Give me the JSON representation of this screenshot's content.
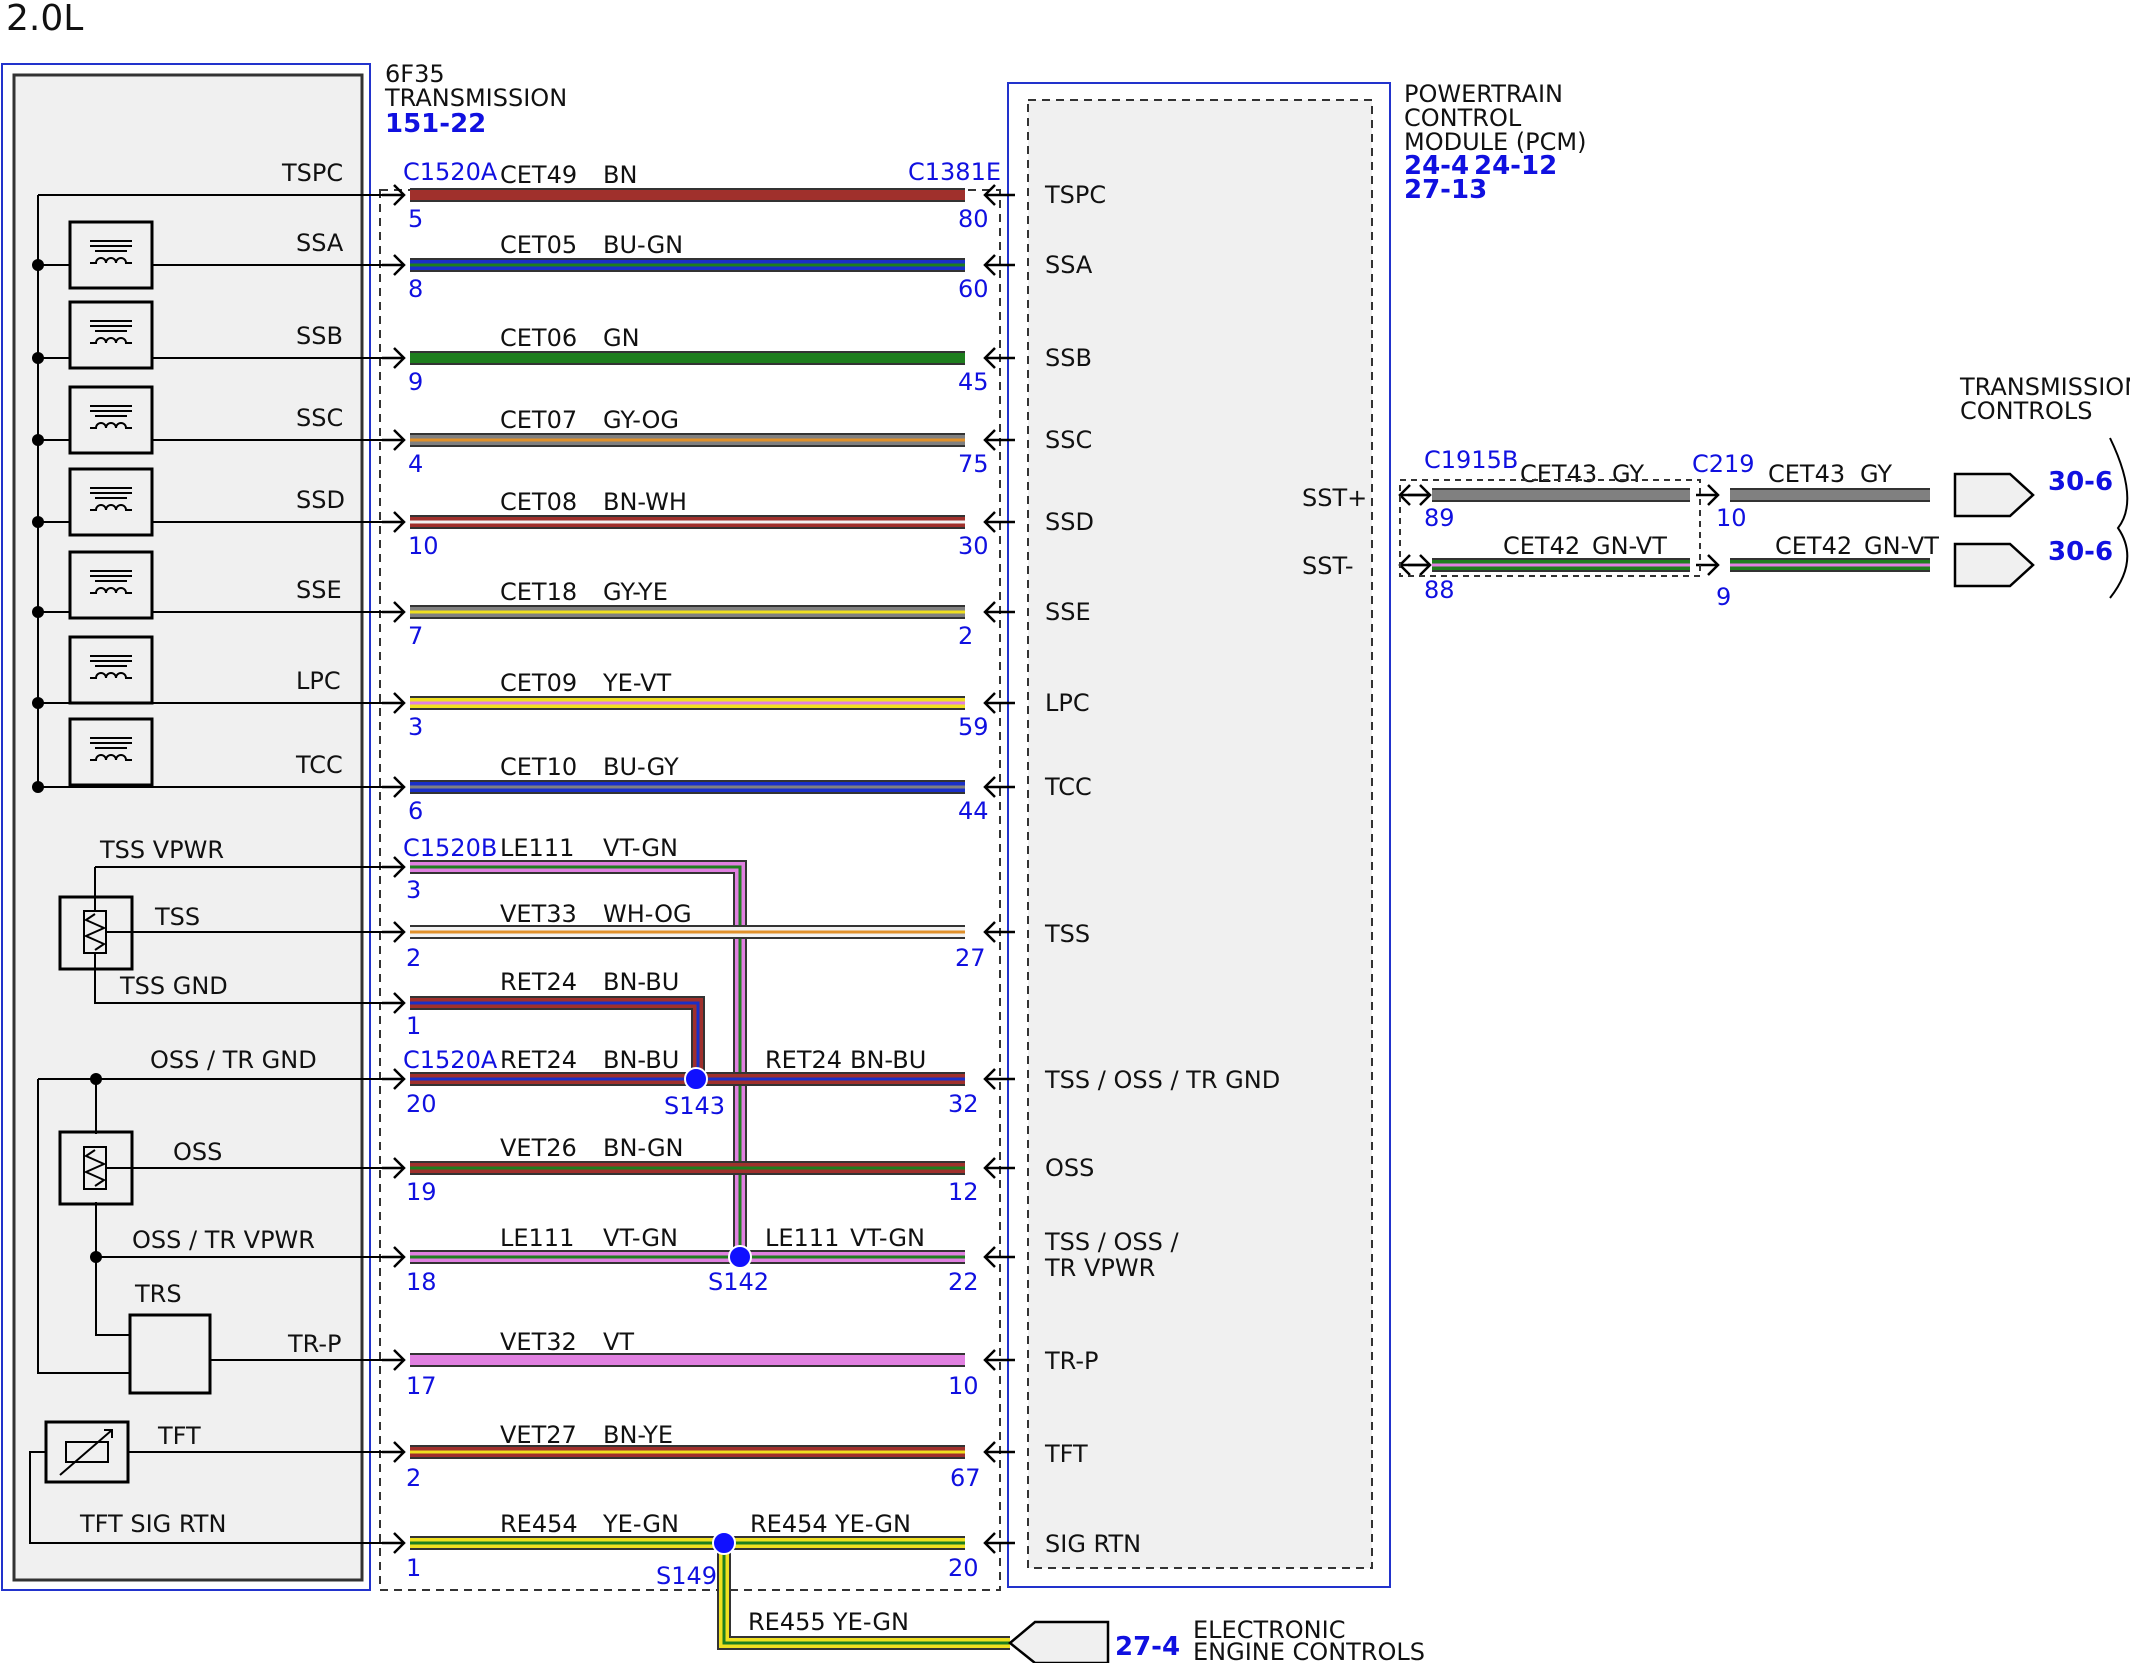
{
  "header": {
    "engine": "2.0L"
  },
  "transmission": {
    "name_line1": "6F35",
    "name_line2": "TRANSMISSION",
    "ref": "151-22",
    "connector_main": "C1520A",
    "connector_b": "C1520B",
    "connector_a_lower": "C1520A"
  },
  "pcm": {
    "name_line1": "POWERTRAIN",
    "name_line2": "CONTROL",
    "name_line3": "MODULE (PCM)",
    "refs": [
      "24-4",
      "24-12",
      "27-13"
    ],
    "connector": "C1381E"
  },
  "components": {
    "tss_vpwr": "TSS VPWR",
    "tss": "TSS",
    "tss_gnd": "TSS GND",
    "oss_tr_gnd": "OSS / TR GND",
    "oss": "OSS",
    "oss_tr_vpwr": "OSS / TR VPWR",
    "trs": "TRS",
    "tr_p": "TR-P",
    "tft": "TFT",
    "tft_sig_rtn": "TFT SIG RTN"
  },
  "circuits": [
    {
      "left": "TSPC",
      "circuit": "CET49",
      "color": "BN",
      "pin_left": "5",
      "pin_right": "80",
      "right": "TSPC"
    },
    {
      "left": "SSA",
      "circuit": "CET05",
      "color": "BU-GN",
      "pin_left": "8",
      "pin_right": "60",
      "right": "SSA"
    },
    {
      "left": "SSB",
      "circuit": "CET06",
      "color": "GN",
      "pin_left": "9",
      "pin_right": "45",
      "right": "SSB"
    },
    {
      "left": "SSC",
      "circuit": "CET07",
      "color": "GY-OG",
      "pin_left": "4",
      "pin_right": "75",
      "right": "SSC"
    },
    {
      "left": "SSD",
      "circuit": "CET08",
      "color": "BN-WH",
      "pin_left": "10",
      "pin_right": "30",
      "right": "SSD"
    },
    {
      "left": "SSE",
      "circuit": "CET18",
      "color": "GY-YE",
      "pin_left": "7",
      "pin_right": "2",
      "right": "SSE"
    },
    {
      "left": "LPC",
      "circuit": "CET09",
      "color": "YE-VT",
      "pin_left": "3",
      "pin_right": "59",
      "right": "LPC"
    },
    {
      "left": "TCC",
      "circuit": "CET10",
      "color": "BU-GY",
      "pin_left": "6",
      "pin_right": "44",
      "right": "TCC"
    }
  ],
  "sensor_circuits": {
    "tss_vpwr": {
      "circuit": "LE111",
      "color": "VT-GN",
      "pin": "3"
    },
    "tss": {
      "circuit": "VET33",
      "color": "WH-OG",
      "pin_left": "2",
      "pin_right": "27",
      "right": "TSS"
    },
    "tss_gnd": {
      "circuit": "RET24",
      "color": "BN-BU",
      "pin": "1"
    },
    "gnd": {
      "circuit": "RET24",
      "color": "BN-BU",
      "pin_left": "20",
      "splice": "S143",
      "circuit_r": "RET24",
      "color_r": "BN-BU",
      "pin_right": "32",
      "right": "TSS / OSS / TR GND"
    },
    "oss": {
      "circuit": "VET26",
      "color": "BN-GN",
      "pin_left": "19",
      "pin_right": "12",
      "right": "OSS"
    },
    "vpwr": {
      "circuit": "LE111",
      "color": "VT-GN",
      "pin_left": "18",
      "splice": "S142",
      "circuit_r": "LE111",
      "color_r": "VT-GN",
      "pin_right": "22",
      "right_line1": "TSS / OSS /",
      "right_line2": "TR VPWR"
    },
    "trp": {
      "circuit": "VET32",
      "color": "VT",
      "pin_left": "17",
      "pin_right": "10",
      "right": "TR-P"
    },
    "tft": {
      "circuit": "VET27",
      "color": "BN-YE",
      "pin_left": "2",
      "pin_right": "67",
      "right": "TFT"
    },
    "sigrtn": {
      "circuit": "RE454",
      "color": "YE-GN",
      "pin_left": "1",
      "splice": "S149",
      "circuit_r": "RE454",
      "color_r": "YE-GN",
      "pin_right": "20",
      "right": "SIG RTN"
    },
    "eec": {
      "circuit": "RE455",
      "color": "YE-GN",
      "ref": "27-4",
      "label_line1": "ELECTRONIC",
      "label_line2": "ENGINE CONTROLS"
    }
  },
  "sst": {
    "title_line1": "TRANSMISSION",
    "title_line2": "CONTROLS",
    "connector1": "C1915B",
    "connector2": "C219",
    "plus": {
      "label": "SST+",
      "circuit": "CET43",
      "color": "GY",
      "pin1": "89",
      "pin2": "10",
      "circuit2": "CET43",
      "color2": "GY",
      "dest": "E",
      "ref": "30-6"
    },
    "minus": {
      "label": "SST-",
      "circuit": "CET42",
      "color": "GN-VT",
      "pin1": "88",
      "pin2": "9",
      "circuit2": "CET42",
      "color2": "GN-VT",
      "dest": "F",
      "ref": "30-6"
    }
  },
  "wire_colors": {
    "BN": "#a0302c",
    "BU": "#1a2fc8",
    "GN": "#1e7e1e",
    "GY": "#808080",
    "OG": "#e0902a",
    "WH": "#f2f2f2",
    "YE": "#f0e020",
    "VT": "#e080e0",
    "splice": "#1010ff",
    "label_blue": "#1010e0"
  }
}
